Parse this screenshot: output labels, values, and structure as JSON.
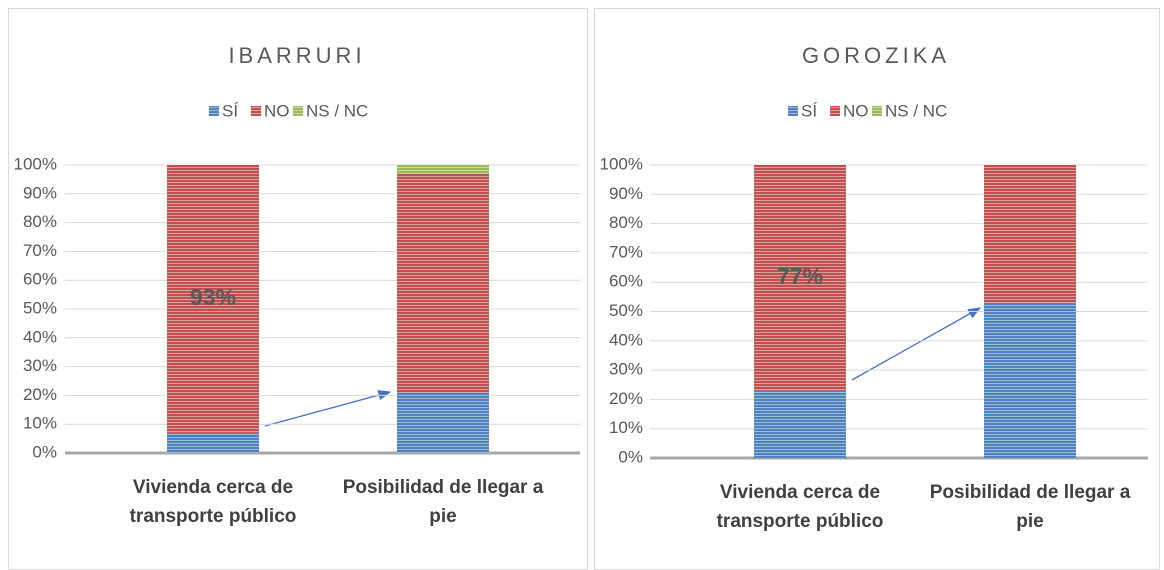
{
  "chart_data": [
    {
      "type": "stacked-bar",
      "title": "IBARRURI",
      "categories": [
        "Vivienda cerca de transporte público",
        "Posibilidad de llegar a pie"
      ],
      "series": [
        {
          "name": "SÍ",
          "color": "#4f81bd",
          "values": [
            7,
            21
          ]
        },
        {
          "name": "NO",
          "color": "#c0504d",
          "values": [
            93,
            76
          ],
          "value_labels": [
            "93%",
            null
          ]
        },
        {
          "name": "NS / NC",
          "color": "#9bbb59",
          "values": [
            0,
            3
          ]
        }
      ],
      "ylim": [
        0,
        100
      ],
      "yticks": [
        {
          "value": 0,
          "label": "0%"
        },
        {
          "value": 10,
          "label": "10%"
        },
        {
          "value": 20,
          "label": "20%"
        },
        {
          "value": 30,
          "label": "30%"
        },
        {
          "value": 40,
          "label": "40%"
        },
        {
          "value": 50,
          "label": "50%"
        },
        {
          "value": 60,
          "label": "60%"
        },
        {
          "value": 70,
          "label": "70%"
        },
        {
          "value": 80,
          "label": "80%"
        },
        {
          "value": 90,
          "label": "90%"
        },
        {
          "value": 100,
          "label": "100%"
        }
      ],
      "grid": true,
      "legend": "top"
    },
    {
      "type": "stacked-bar",
      "title": "GOROZIKA",
      "categories": [
        "Vivienda cerca de transporte público",
        "Posibilidad de llegar a pie"
      ],
      "series": [
        {
          "name": "SÍ",
          "color": "#4f81bd",
          "values": [
            23,
            53
          ]
        },
        {
          "name": "NO",
          "color": "#c0504d",
          "values": [
            77,
            47
          ],
          "value_labels": [
            "77%",
            null
          ]
        },
        {
          "name": "NS / NC",
          "color": "#9bbb59",
          "values": [
            0,
            0
          ]
        }
      ],
      "ylim": [
        0,
        100
      ],
      "yticks": [
        {
          "value": 0,
          "label": "0%"
        },
        {
          "value": 10,
          "label": "10%"
        },
        {
          "value": 20,
          "label": "20%"
        },
        {
          "value": 30,
          "label": "30%"
        },
        {
          "value": 40,
          "label": "40%"
        },
        {
          "value": 50,
          "label": "50%"
        },
        {
          "value": 60,
          "label": "60%"
        },
        {
          "value": 70,
          "label": "70%"
        },
        {
          "value": 80,
          "label": "80%"
        },
        {
          "value": 90,
          "label": "90%"
        },
        {
          "value": 100,
          "label": "100%"
        }
      ],
      "grid": true,
      "legend": "top"
    }
  ]
}
